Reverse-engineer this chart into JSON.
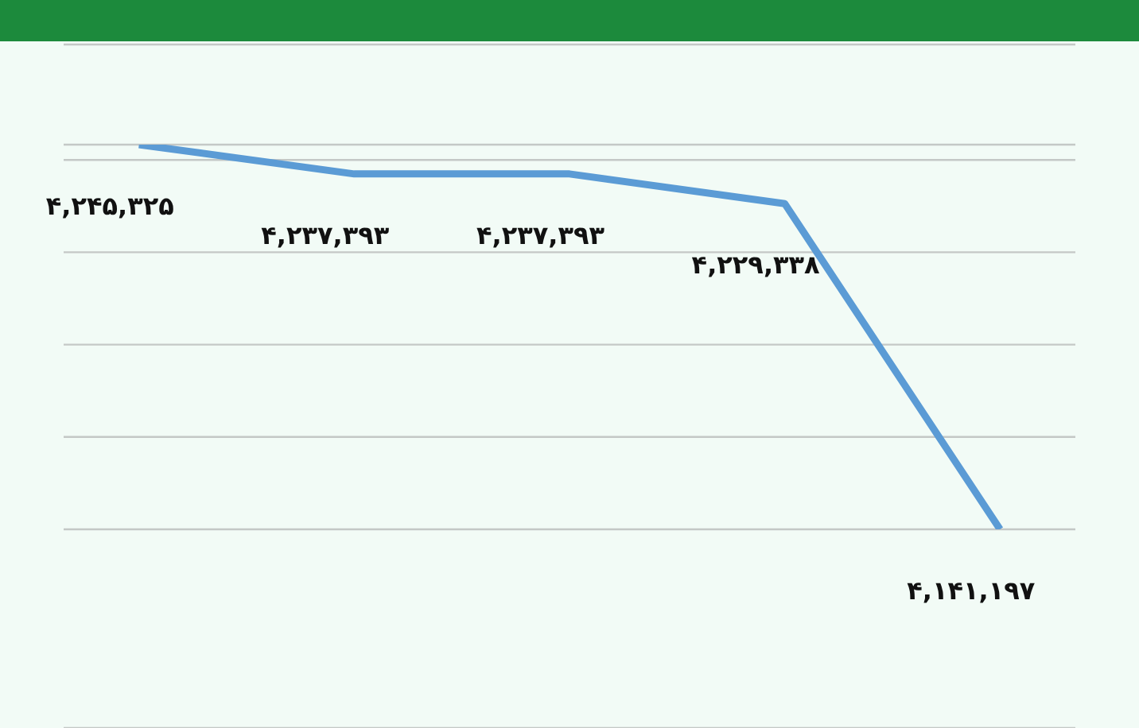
{
  "chart_data": {
    "type": "line",
    "categories": [
      null,
      null,
      null,
      null,
      null
    ],
    "series": [
      {
        "color": "#5b9bd5",
        "values": [
          4245325,
          4237393,
          4237393,
          4229338,
          4141197
        ],
        "value_labels": [
          "۴,۲۴۵,۳۲۵",
          "۴,۲۳۷,۳۹۳",
          "۴,۲۳۷,۳۹۳",
          "۴,۲۲۹,۳۳۸",
          "۴,۱۴۱,۱۹۷"
        ]
      }
    ],
    "grid": "y",
    "tick_labels": false,
    "marker": "none",
    "line_style": "solid",
    "legend": false
  }
}
